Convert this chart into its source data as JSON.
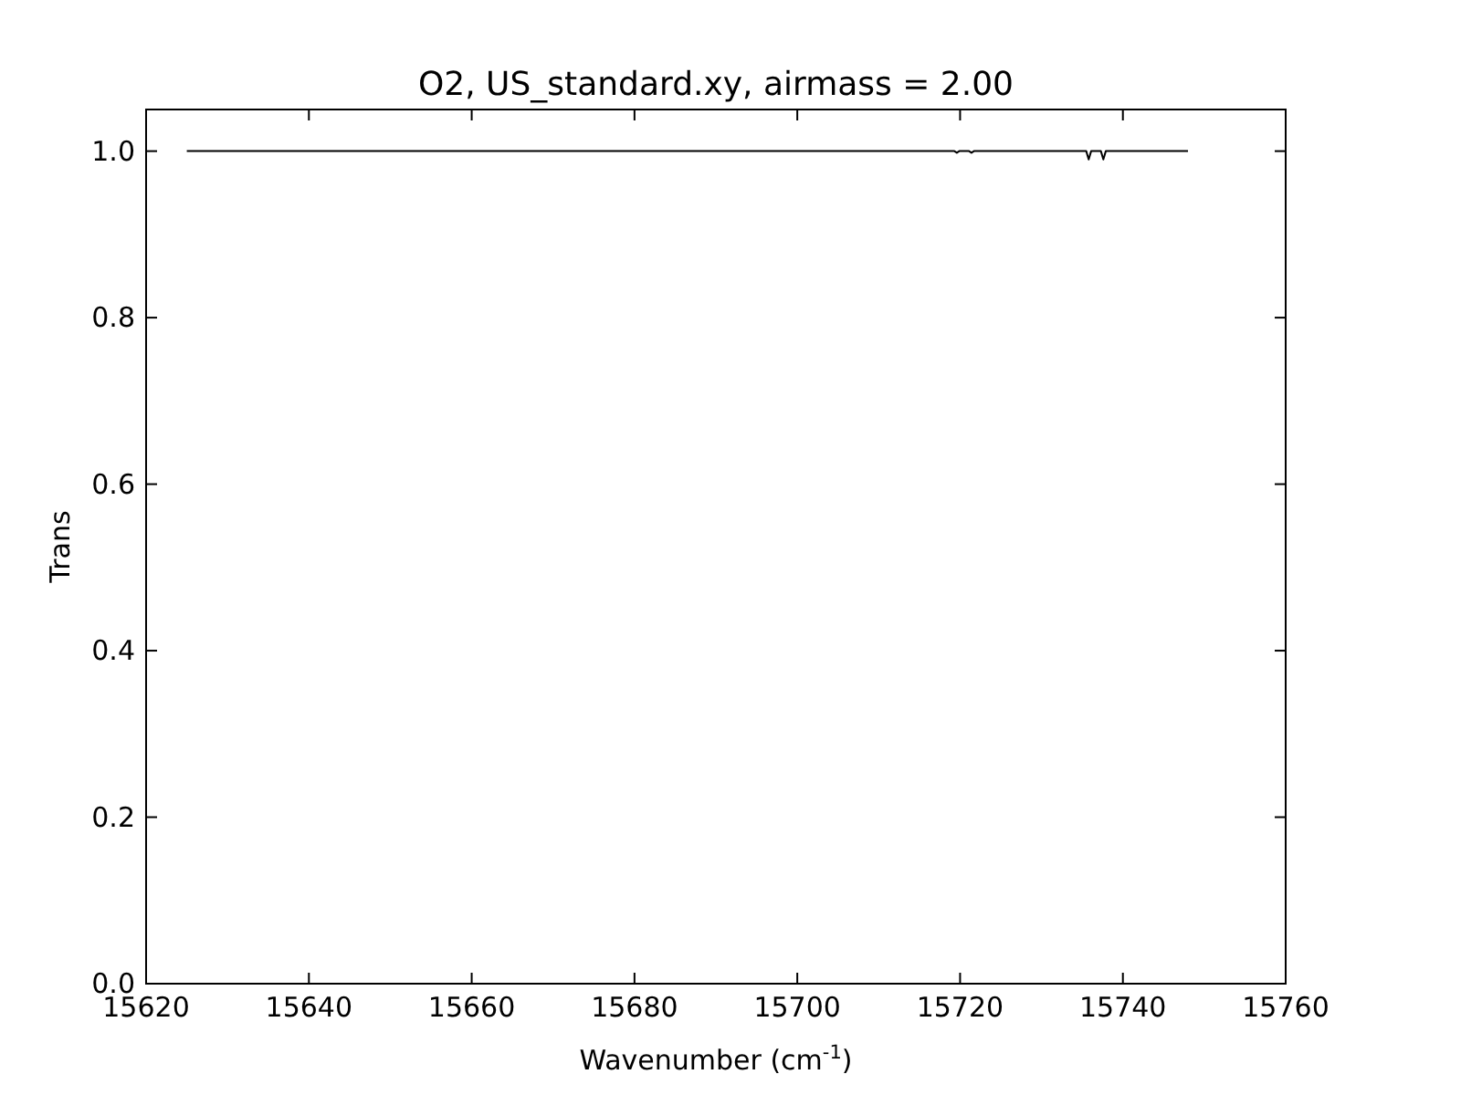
{
  "chart_data": {
    "type": "line",
    "title": "O2, US_standard.xy, airmass = 2.00",
    "xlabel": "Wavenumber (cm$^{-1}$)",
    "ylabel": "Trans",
    "x": [
      15625,
      15719.3,
      15719.6,
      15719.9,
      15721.1,
      15721.4,
      15721.7,
      15735.5,
      15735.8,
      15736.1,
      15737.3,
      15737.6,
      15737.9,
      15748
    ],
    "series": [
      {
        "color": "#000000",
        "values": [
          1,
          1,
          0.998,
          1,
          1,
          0.998,
          1,
          1,
          0.99,
          1,
          1,
          0.99,
          1,
          1
        ]
      }
    ],
    "xlim": [
      15620,
      15760
    ],
    "xticks": [
      15620,
      15640,
      15660,
      15680,
      15700,
      15720,
      15740,
      15760
    ],
    "ylim": [
      0,
      1.05
    ],
    "yticks": [
      {
        "value": 0,
        "label": "0.0"
      },
      {
        "value": 0.2,
        "label": "0.2"
      },
      {
        "value": 0.4,
        "label": "0.4"
      },
      {
        "value": 0.6,
        "label": "0.6"
      },
      {
        "value": 0.8,
        "label": "0.8"
      },
      {
        "value": 1,
        "label": "1.0"
      }
    ],
    "grid": false,
    "line_style": "solid",
    "marker": "none"
  }
}
